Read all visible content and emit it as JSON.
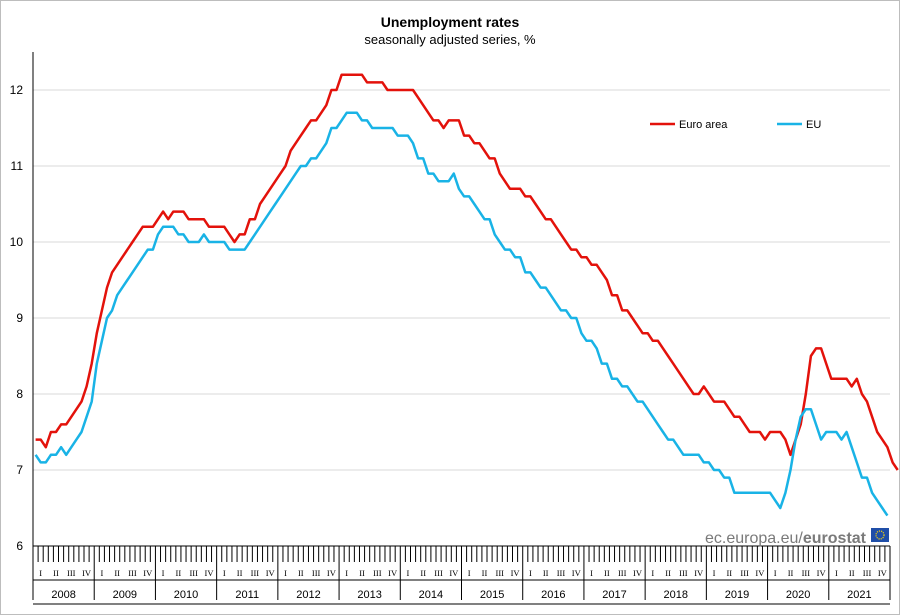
{
  "chart_data": {
    "type": "line",
    "title": "Unemployment rates",
    "subtitle": "seasonally adjusted series, %",
    "xlabel": "",
    "ylabel": "",
    "ylim": [
      6,
      12.5
    ],
    "yticks": [
      6,
      7,
      8,
      9,
      10,
      11,
      12
    ],
    "grid": true,
    "legend_position": "top-right",
    "x_start": "2008-01",
    "x_frequency": "monthly",
    "years": [
      "2008",
      "2009",
      "2010",
      "2011",
      "2012",
      "2013",
      "2014",
      "2015",
      "2016",
      "2017",
      "2018",
      "2019",
      "2020",
      "2021"
    ],
    "quarter_labels": [
      "I",
      "II",
      "III",
      "IV"
    ],
    "series": [
      {
        "name": "Euro area",
        "color": "#e3120b",
        "values": [
          7.4,
          7.4,
          7.3,
          7.5,
          7.5,
          7.6,
          7.6,
          7.7,
          7.8,
          7.9,
          8.1,
          8.4,
          8.8,
          9.1,
          9.4,
          9.6,
          9.7,
          9.8,
          9.9,
          10.0,
          10.1,
          10.2,
          10.2,
          10.2,
          10.3,
          10.4,
          10.3,
          10.4,
          10.4,
          10.4,
          10.3,
          10.3,
          10.3,
          10.3,
          10.2,
          10.2,
          10.2,
          10.2,
          10.1,
          10.0,
          10.1,
          10.1,
          10.3,
          10.3,
          10.5,
          10.6,
          10.7,
          10.8,
          10.9,
          11.0,
          11.2,
          11.3,
          11.4,
          11.5,
          11.6,
          11.6,
          11.7,
          11.8,
          12.0,
          12.0,
          12.2,
          12.2,
          12.2,
          12.2,
          12.2,
          12.1,
          12.1,
          12.1,
          12.1,
          12.0,
          12.0,
          12.0,
          12.0,
          12.0,
          12.0,
          11.9,
          11.8,
          11.7,
          11.6,
          11.6,
          11.5,
          11.6,
          11.6,
          11.6,
          11.4,
          11.4,
          11.3,
          11.3,
          11.2,
          11.1,
          11.1,
          10.9,
          10.8,
          10.7,
          10.7,
          10.7,
          10.6,
          10.6,
          10.5,
          10.4,
          10.3,
          10.3,
          10.2,
          10.1,
          10.0,
          9.9,
          9.9,
          9.8,
          9.8,
          9.7,
          9.7,
          9.6,
          9.5,
          9.3,
          9.3,
          9.1,
          9.1,
          9.0,
          8.9,
          8.8,
          8.8,
          8.7,
          8.7,
          8.6,
          8.5,
          8.4,
          8.3,
          8.2,
          8.1,
          8.0,
          8.0,
          8.1,
          8.0,
          7.9,
          7.9,
          7.9,
          7.8,
          7.7,
          7.7,
          7.6,
          7.5,
          7.5,
          7.5,
          7.4,
          7.5,
          7.5,
          7.5,
          7.4,
          7.2,
          7.4,
          7.6,
          8.0,
          8.5,
          8.6,
          8.6,
          8.4,
          8.2,
          8.2,
          8.2,
          8.2,
          8.1,
          8.2,
          8.0,
          7.9,
          7.7,
          7.5,
          7.4,
          7.3,
          7.1,
          7.0
        ]
      },
      {
        "name": "EU",
        "color": "#19b3e6",
        "values": [
          7.2,
          7.1,
          7.1,
          7.2,
          7.2,
          7.3,
          7.2,
          7.3,
          7.4,
          7.5,
          7.7,
          7.9,
          8.4,
          8.7,
          9.0,
          9.1,
          9.3,
          9.4,
          9.5,
          9.6,
          9.7,
          9.8,
          9.9,
          9.9,
          10.1,
          10.2,
          10.2,
          10.2,
          10.1,
          10.1,
          10.0,
          10.0,
          10.0,
          10.1,
          10.0,
          10.0,
          10.0,
          10.0,
          9.9,
          9.9,
          9.9,
          9.9,
          10.0,
          10.1,
          10.2,
          10.3,
          10.4,
          10.5,
          10.6,
          10.7,
          10.8,
          10.9,
          11.0,
          11.0,
          11.1,
          11.1,
          11.2,
          11.3,
          11.5,
          11.5,
          11.6,
          11.7,
          11.7,
          11.7,
          11.6,
          11.6,
          11.5,
          11.5,
          11.5,
          11.5,
          11.5,
          11.4,
          11.4,
          11.4,
          11.3,
          11.1,
          11.1,
          10.9,
          10.9,
          10.8,
          10.8,
          10.8,
          10.9,
          10.7,
          10.6,
          10.6,
          10.5,
          10.4,
          10.3,
          10.3,
          10.1,
          10.0,
          9.9,
          9.9,
          9.8,
          9.8,
          9.6,
          9.6,
          9.5,
          9.4,
          9.4,
          9.3,
          9.2,
          9.1,
          9.1,
          9.0,
          9.0,
          8.8,
          8.7,
          8.7,
          8.6,
          8.4,
          8.4,
          8.2,
          8.2,
          8.1,
          8.1,
          8.0,
          7.9,
          7.9,
          7.8,
          7.7,
          7.6,
          7.5,
          7.4,
          7.4,
          7.3,
          7.2,
          7.2,
          7.2,
          7.2,
          7.1,
          7.1,
          7.0,
          7.0,
          6.9,
          6.9,
          6.7,
          6.7,
          6.7,
          6.7,
          6.7,
          6.7,
          6.7,
          6.7,
          6.6,
          6.5,
          6.7,
          7.0,
          7.4,
          7.7,
          7.8,
          7.8,
          7.6,
          7.4,
          7.5,
          7.5,
          7.5,
          7.4,
          7.5,
          7.3,
          7.1,
          6.9,
          6.9,
          6.7,
          6.6,
          6.5,
          6.4
        ]
      }
    ]
  },
  "source": {
    "prefix": "ec.europa.eu/",
    "brand": "eurostat"
  }
}
